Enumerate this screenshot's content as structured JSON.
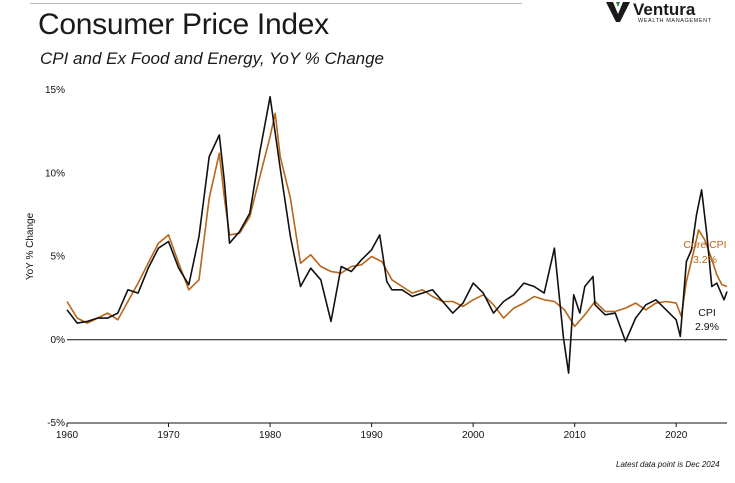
{
  "header": {
    "title": "Consumer Price Index",
    "subtitle": "CPI and Ex Food and Energy, YoY % Change"
  },
  "logo": {
    "name": "Ventura",
    "tagline": "WEALTH MANAGEMENT",
    "accent_color": "#2e7d3a"
  },
  "footnote": "Latest data point is Dec 2024",
  "chart_data": {
    "type": "line",
    "title": "Consumer Price Index",
    "subtitle": "CPI and Ex Food and Energy, YoY % Change",
    "xlabel": "",
    "ylabel": "YoY % Change",
    "xlim": [
      1960,
      2025
    ],
    "ylim": [
      -5,
      15
    ],
    "x_ticks": [
      1960,
      1970,
      1980,
      1990,
      2000,
      2010,
      2020
    ],
    "y_ticks": [
      -5,
      0,
      5,
      10,
      15
    ],
    "y_tick_labels": [
      "-5%",
      "0%",
      "5%",
      "10%",
      "15%"
    ],
    "grid": false,
    "legend": "end-labels",
    "series": [
      {
        "name": "CPI",
        "end_label": "2.9%",
        "color": "#111111",
        "points": [
          [
            1960,
            1.8
          ],
          [
            1961,
            1.0
          ],
          [
            1962,
            1.1
          ],
          [
            1963,
            1.3
          ],
          [
            1964,
            1.3
          ],
          [
            1965,
            1.6
          ],
          [
            1966,
            3.0
          ],
          [
            1967,
            2.8
          ],
          [
            1968,
            4.3
          ],
          [
            1969,
            5.5
          ],
          [
            1970,
            5.9
          ],
          [
            1971,
            4.3
          ],
          [
            1972,
            3.3
          ],
          [
            1973,
            6.2
          ],
          [
            1974,
            11.0
          ],
          [
            1975,
            12.3
          ],
          [
            1975.5,
            9.5
          ],
          [
            1976,
            5.8
          ],
          [
            1977,
            6.5
          ],
          [
            1978,
            7.6
          ],
          [
            1979,
            11.3
          ],
          [
            1980,
            14.6
          ],
          [
            1981,
            10.3
          ],
          [
            1982,
            6.2
          ],
          [
            1983,
            3.2
          ],
          [
            1984,
            4.3
          ],
          [
            1985,
            3.6
          ],
          [
            1986,
            1.1
          ],
          [
            1987,
            4.4
          ],
          [
            1988,
            4.1
          ],
          [
            1989,
            4.8
          ],
          [
            1990,
            5.4
          ],
          [
            1990.8,
            6.3
          ],
          [
            1991.5,
            3.5
          ],
          [
            1992,
            3.0
          ],
          [
            1993,
            3.0
          ],
          [
            1994,
            2.6
          ],
          [
            1995,
            2.8
          ],
          [
            1996,
            3.0
          ],
          [
            1997,
            2.3
          ],
          [
            1998,
            1.6
          ],
          [
            1999,
            2.2
          ],
          [
            2000,
            3.4
          ],
          [
            2001,
            2.8
          ],
          [
            2002,
            1.6
          ],
          [
            2003,
            2.3
          ],
          [
            2004,
            2.7
          ],
          [
            2005,
            3.4
          ],
          [
            2006,
            3.2
          ],
          [
            2007,
            2.8
          ],
          [
            2008,
            5.5
          ],
          [
            2008.9,
            0.1
          ],
          [
            2009.4,
            -2.0
          ],
          [
            2009.9,
            2.7
          ],
          [
            2010.5,
            1.6
          ],
          [
            2011,
            3.2
          ],
          [
            2011.8,
            3.8
          ],
          [
            2012,
            2.1
          ],
          [
            2013,
            1.5
          ],
          [
            2014,
            1.6
          ],
          [
            2015,
            -0.1
          ],
          [
            2016,
            1.3
          ],
          [
            2017,
            2.1
          ],
          [
            2018,
            2.4
          ],
          [
            2019,
            1.8
          ],
          [
            2020,
            1.2
          ],
          [
            2020.4,
            0.2
          ],
          [
            2021,
            4.7
          ],
          [
            2021.5,
            5.4
          ],
          [
            2022,
            7.5
          ],
          [
            2022.5,
            9.0
          ],
          [
            2023,
            6.4
          ],
          [
            2023.5,
            3.2
          ],
          [
            2024,
            3.4
          ],
          [
            2024.7,
            2.4
          ],
          [
            2025,
            2.9
          ]
        ]
      },
      {
        "name": "Core CPI",
        "end_label": "3.2%",
        "color": "#b8661a",
        "points": [
          [
            1960,
            2.3
          ],
          [
            1961,
            1.3
          ],
          [
            1962,
            1.0
          ],
          [
            1963,
            1.3
          ],
          [
            1964,
            1.6
          ],
          [
            1965,
            1.2
          ],
          [
            1966,
            2.3
          ],
          [
            1967,
            3.4
          ],
          [
            1968,
            4.6
          ],
          [
            1969,
            5.8
          ],
          [
            1970,
            6.3
          ],
          [
            1971,
            4.6
          ],
          [
            1972,
            3.0
          ],
          [
            1973,
            3.6
          ],
          [
            1974,
            8.5
          ],
          [
            1975,
            11.2
          ],
          [
            1975.5,
            8.5
          ],
          [
            1976,
            6.3
          ],
          [
            1977,
            6.4
          ],
          [
            1978,
            7.4
          ],
          [
            1979,
            9.8
          ],
          [
            1980,
            12.2
          ],
          [
            1980.5,
            13.6
          ],
          [
            1981,
            11.0
          ],
          [
            1982,
            8.5
          ],
          [
            1983,
            4.6
          ],
          [
            1984,
            5.1
          ],
          [
            1985,
            4.4
          ],
          [
            1986,
            4.1
          ],
          [
            1987,
            4.0
          ],
          [
            1988,
            4.4
          ],
          [
            1989,
            4.5
          ],
          [
            1990,
            5.0
          ],
          [
            1991,
            4.7
          ],
          [
            1992,
            3.6
          ],
          [
            1993,
            3.2
          ],
          [
            1994,
            2.8
          ],
          [
            1995,
            3.0
          ],
          [
            1996,
            2.6
          ],
          [
            1997,
            2.3
          ],
          [
            1998,
            2.3
          ],
          [
            1999,
            2.0
          ],
          [
            2000,
            2.4
          ],
          [
            2001,
            2.7
          ],
          [
            2002,
            2.1
          ],
          [
            2003,
            1.3
          ],
          [
            2004,
            1.9
          ],
          [
            2005,
            2.2
          ],
          [
            2006,
            2.6
          ],
          [
            2007,
            2.4
          ],
          [
            2008,
            2.3
          ],
          [
            2009,
            1.8
          ],
          [
            2010,
            0.8
          ],
          [
            2011,
            1.5
          ],
          [
            2012,
            2.3
          ],
          [
            2013,
            1.7
          ],
          [
            2014,
            1.7
          ],
          [
            2015,
            1.9
          ],
          [
            2016,
            2.2
          ],
          [
            2017,
            1.8
          ],
          [
            2018,
            2.2
          ],
          [
            2019,
            2.3
          ],
          [
            2020,
            2.2
          ],
          [
            2020.5,
            1.4
          ],
          [
            2021,
            3.5
          ],
          [
            2021.8,
            5.5
          ],
          [
            2022.2,
            6.6
          ],
          [
            2022.8,
            6.0
          ],
          [
            2023.4,
            5.0
          ],
          [
            2024,
            3.9
          ],
          [
            2024.5,
            3.3
          ],
          [
            2025,
            3.2
          ]
        ]
      }
    ]
  }
}
